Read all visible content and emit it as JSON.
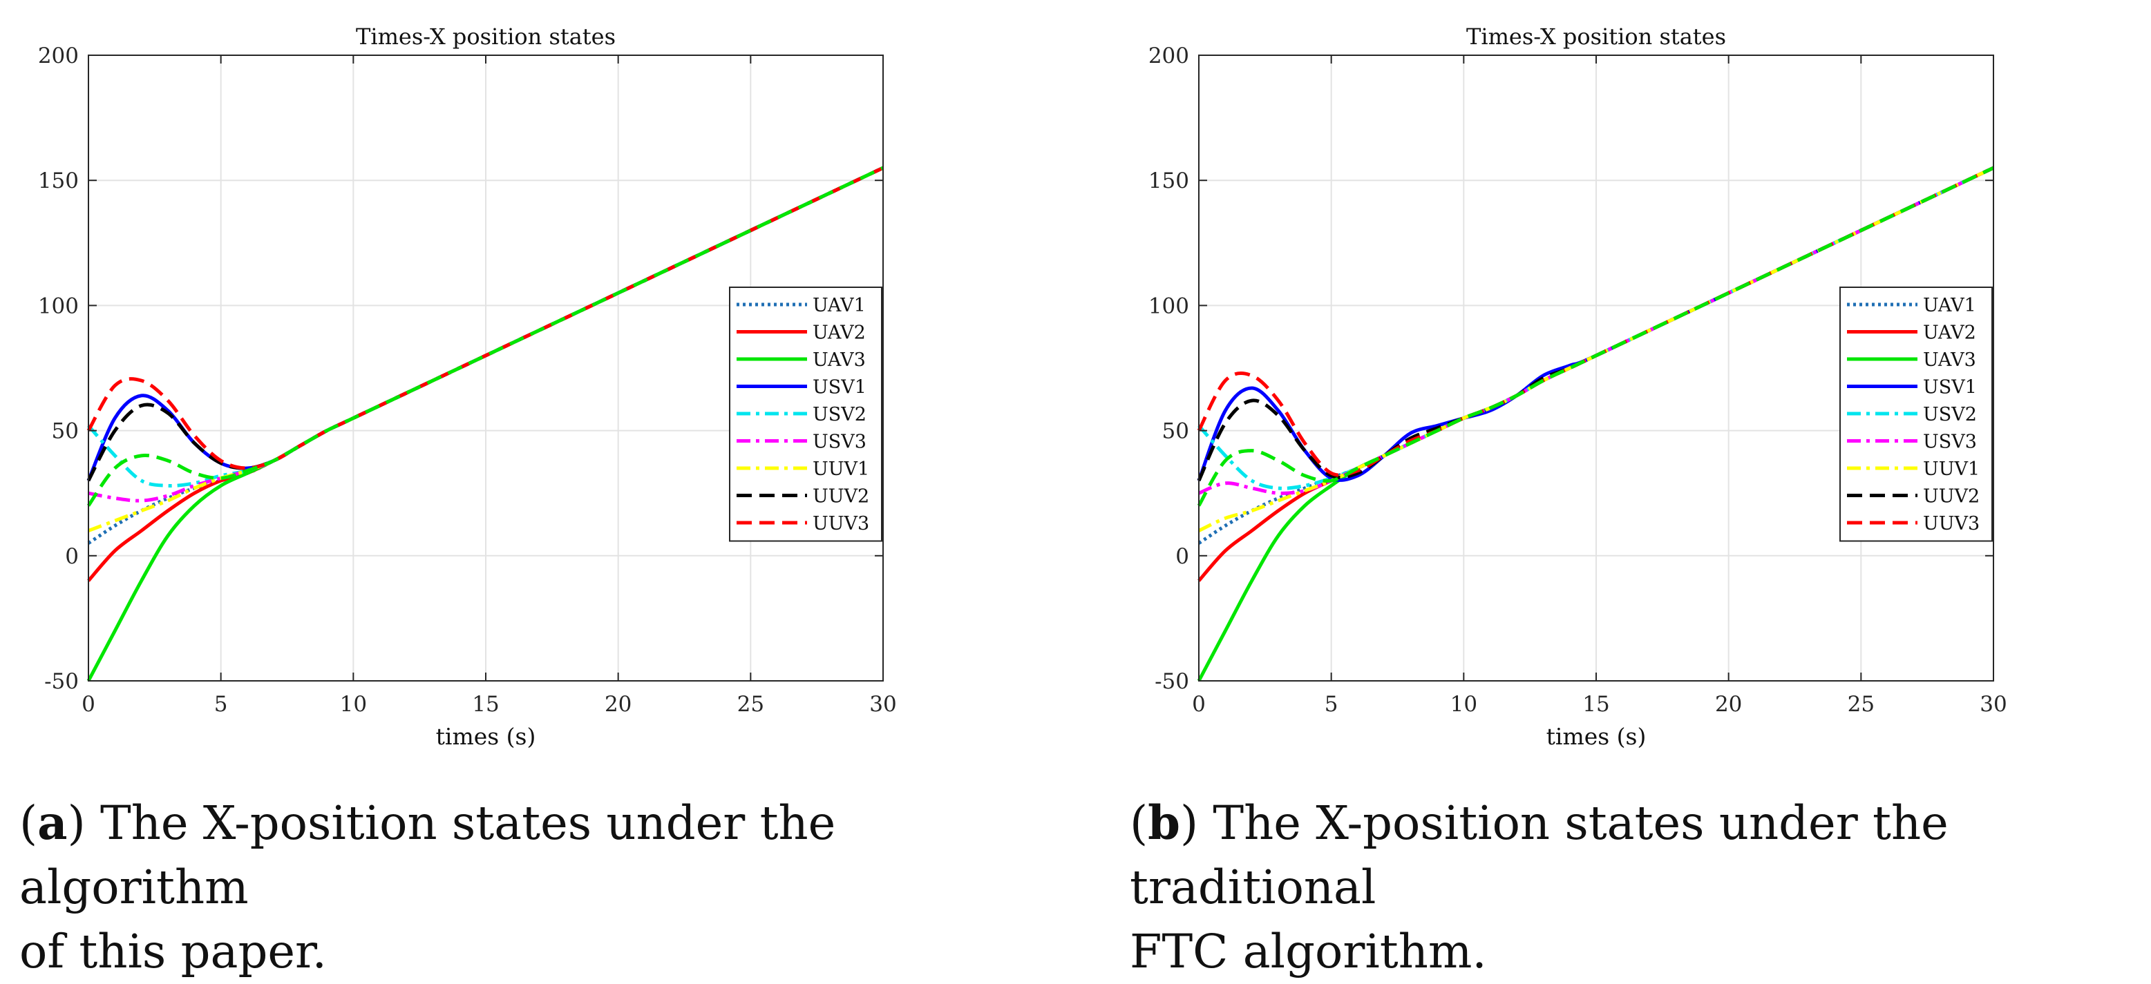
{
  "chart_data": [
    {
      "type": "line",
      "title": "Times-X position states",
      "xlabel": "times (s)",
      "ylabel": "",
      "xlim": [
        0,
        30
      ],
      "ylim": [
        -50,
        200
      ],
      "xticks": [
        "0",
        "5",
        "10",
        "15",
        "20",
        "25",
        "30"
      ],
      "yticks": [
        "-50",
        "0",
        "50",
        "100",
        "150",
        "200"
      ],
      "grid": true,
      "legend_position": "right",
      "x": [
        0,
        1,
        2,
        3,
        4,
        5,
        6,
        7,
        8,
        9,
        10,
        15,
        20,
        25,
        30
      ],
      "series": [
        {
          "name": "UAV1",
          "color": "#1f6fb4",
          "dash": "dotted",
          "values": [
            5,
            12,
            18,
            23,
            27,
            30,
            33,
            38,
            44,
            50,
            55,
            80,
            105,
            130,
            155
          ]
        },
        {
          "name": "UAV2",
          "color": "#ff0000",
          "dash": "solid",
          "values": [
            -10,
            2,
            10,
            18,
            25,
            30,
            33,
            38,
            44,
            50,
            55,
            80,
            105,
            130,
            155
          ]
        },
        {
          "name": "UAV3",
          "color": "#00e600",
          "dash": "solid",
          "values": [
            -50,
            -30,
            -10,
            8,
            20,
            28,
            33,
            38,
            44,
            50,
            55,
            80,
            105,
            130,
            155
          ]
        },
        {
          "name": "USV1",
          "color": "#0000ff",
          "dash": "solid",
          "values": [
            30,
            55,
            64,
            58,
            45,
            37,
            35,
            38,
            44,
            50,
            55,
            80,
            105,
            130,
            155
          ]
        },
        {
          "name": "USV2",
          "color": "#00e5ee",
          "dash": "dashdot",
          "values": [
            52,
            40,
            30,
            28,
            29,
            32,
            34,
            38,
            44,
            50,
            55,
            80,
            105,
            130,
            155
          ]
        },
        {
          "name": "USV3",
          "color": "#ff00ff",
          "dash": "dashdot",
          "values": [
            25,
            23,
            22,
            24,
            28,
            31,
            34,
            38,
            44,
            50,
            55,
            80,
            105,
            130,
            155
          ]
        },
        {
          "name": "UUV1",
          "color": "#ffff00",
          "dash": "dashdot",
          "values": [
            10,
            14,
            18,
            22,
            27,
            31,
            34,
            38,
            44,
            50,
            55,
            80,
            105,
            130,
            155
          ]
        },
        {
          "name": "UUV2",
          "color": "#000000",
          "dash": "dashed",
          "values": [
            30,
            50,
            60,
            57,
            45,
            37,
            35,
            38,
            44,
            50,
            55,
            80,
            105,
            130,
            155
          ]
        },
        {
          "name": "UUV3",
          "color": "#ff0000",
          "dash": "dashed",
          "values": [
            50,
            68,
            70,
            62,
            48,
            38,
            35,
            38,
            44,
            50,
            55,
            80,
            105,
            130,
            155
          ]
        },
        {
          "name": "",
          "color": "#00e600",
          "dash": "dashed",
          "values": [
            20,
            35,
            40,
            38,
            33,
            31,
            34,
            38,
            44,
            50,
            55,
            80,
            105,
            130,
            155
          ]
        }
      ]
    },
    {
      "type": "line",
      "title": "Times-X position states",
      "xlabel": "times (s)",
      "ylabel": "",
      "xlim": [
        0,
        30
      ],
      "ylim": [
        -50,
        200
      ],
      "xticks": [
        "0",
        "5",
        "10",
        "15",
        "20",
        "25",
        "30"
      ],
      "yticks": [
        "-50",
        "0",
        "50",
        "100",
        "150",
        "200"
      ],
      "grid": true,
      "legend_position": "right",
      "x": [
        0,
        1,
        2,
        3,
        4,
        5,
        6,
        7,
        8,
        9,
        10,
        11,
        12,
        13,
        14,
        15,
        20,
        25,
        30
      ],
      "series": [
        {
          "name": "UAV1",
          "color": "#1f6fb4",
          "dash": "dotted",
          "values": [
            5,
            12,
            18,
            23,
            27,
            31,
            35,
            40,
            45,
            50,
            55,
            59,
            64,
            70,
            75,
            80,
            105,
            130,
            155
          ]
        },
        {
          "name": "UAV2",
          "color": "#ff0000",
          "dash": "solid",
          "values": [
            -10,
            2,
            10,
            18,
            25,
            30,
            35,
            40,
            45,
            50,
            55,
            59,
            64,
            70,
            75,
            80,
            105,
            130,
            155
          ]
        },
        {
          "name": "UAV3",
          "color": "#00e600",
          "dash": "solid",
          "values": [
            -50,
            -30,
            -10,
            8,
            20,
            28,
            35,
            40,
            45,
            50,
            55,
            59,
            64,
            70,
            75,
            80,
            105,
            130,
            155
          ]
        },
        {
          "name": "USV1",
          "color": "#0000ff",
          "dash": "solid",
          "values": [
            30,
            58,
            67,
            58,
            42,
            31,
            32,
            40,
            49,
            52,
            55,
            58,
            64,
            72,
            76,
            80,
            105,
            130,
            155
          ]
        },
        {
          "name": "USV2",
          "color": "#00e5ee",
          "dash": "dashdot",
          "values": [
            52,
            40,
            30,
            27,
            28,
            31,
            35,
            40,
            45,
            50,
            55,
            59,
            64,
            70,
            75,
            80,
            105,
            130,
            155
          ]
        },
        {
          "name": "USV3",
          "color": "#ff00ff",
          "dash": "dashdot",
          "values": [
            25,
            29,
            27,
            25,
            26,
            30,
            35,
            40,
            45,
            50,
            55,
            59,
            64,
            70,
            75,
            80,
            105,
            130,
            155
          ]
        },
        {
          "name": "UUV1",
          "color": "#ffff00",
          "dash": "dashdot",
          "values": [
            10,
            15,
            18,
            22,
            26,
            30,
            35,
            40,
            45,
            50,
            55,
            59,
            64,
            70,
            75,
            80,
            105,
            130,
            155
          ]
        },
        {
          "name": "UUV2",
          "color": "#000000",
          "dash": "dashed",
          "values": [
            30,
            53,
            62,
            56,
            42,
            32,
            33,
            40,
            47,
            51,
            55,
            59,
            64,
            71,
            75,
            80,
            105,
            130,
            155
          ]
        },
        {
          "name": "UUV3",
          "color": "#ff0000",
          "dash": "dashed",
          "values": [
            50,
            70,
            72,
            62,
            45,
            33,
            34,
            40,
            46,
            50,
            55,
            59,
            64,
            70,
            75,
            80,
            105,
            130,
            155
          ]
        },
        {
          "name": "",
          "color": "#00e600",
          "dash": "dashed",
          "values": [
            20,
            38,
            42,
            38,
            32,
            30,
            35,
            40,
            45,
            50,
            55,
            59,
            64,
            70,
            75,
            80,
            105,
            130,
            155
          ]
        }
      ]
    }
  ],
  "captions": [
    {
      "label": "a",
      "text_line1": ") The X-position states under the algorithm",
      "text_line2": "of this paper."
    },
    {
      "label": "b",
      "text_line1": ") The X-position states under the traditional",
      "text_line2": "FTC algorithm."
    }
  ]
}
